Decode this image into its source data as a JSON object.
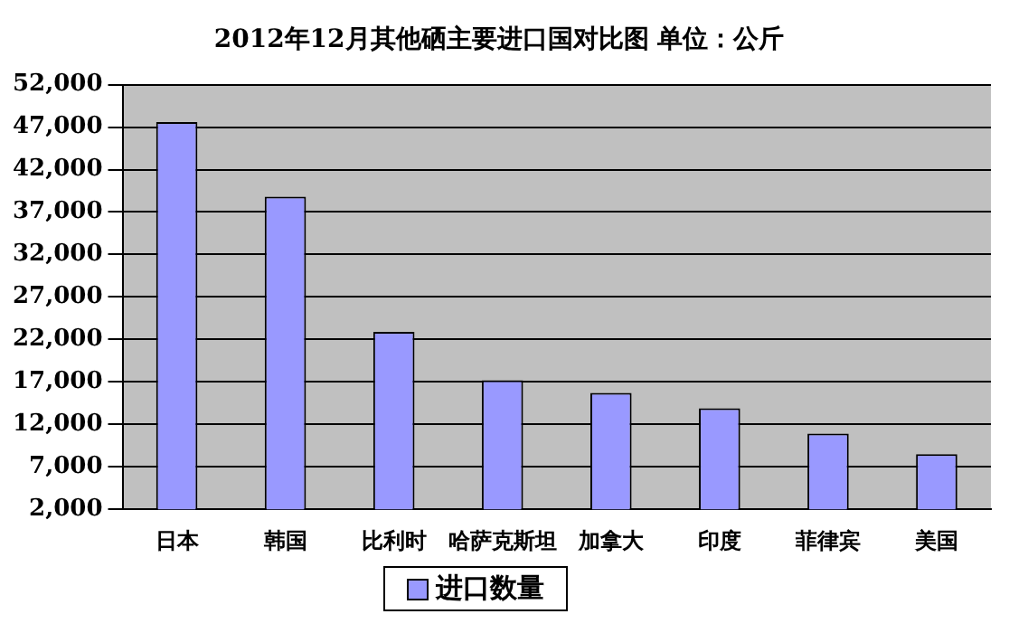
{
  "chart_data": {
    "type": "bar",
    "title": "2012年12月其他硒主要进口国对比图 单位：公斤",
    "categories": [
      "日本",
      "韩国",
      "比利时",
      "哈萨克斯坦",
      "加拿大",
      "印度",
      "菲律宾",
      "美国"
    ],
    "series": [
      {
        "name": "进口数量",
        "color": "#9999ff",
        "values": [
          47600,
          38800,
          22900,
          17200,
          15700,
          13900,
          10900,
          8500
        ]
      }
    ],
    "ylim": [
      2000,
      52000
    ],
    "yticks": [
      {
        "value": 2000,
        "label": "2,000"
      },
      {
        "value": 7000,
        "label": "7,000"
      },
      {
        "value": 12000,
        "label": "12,000"
      },
      {
        "value": 17000,
        "label": "17,000"
      },
      {
        "value": 22000,
        "label": "22,000"
      },
      {
        "value": 27000,
        "label": "27,000"
      },
      {
        "value": 32000,
        "label": "32,000"
      },
      {
        "value": 37000,
        "label": "37,000"
      },
      {
        "value": 42000,
        "label": "42,000"
      },
      {
        "value": 47000,
        "label": "47,000"
      },
      {
        "value": 52000,
        "label": "52,000"
      }
    ],
    "grid": "y",
    "legend": "bottom"
  }
}
